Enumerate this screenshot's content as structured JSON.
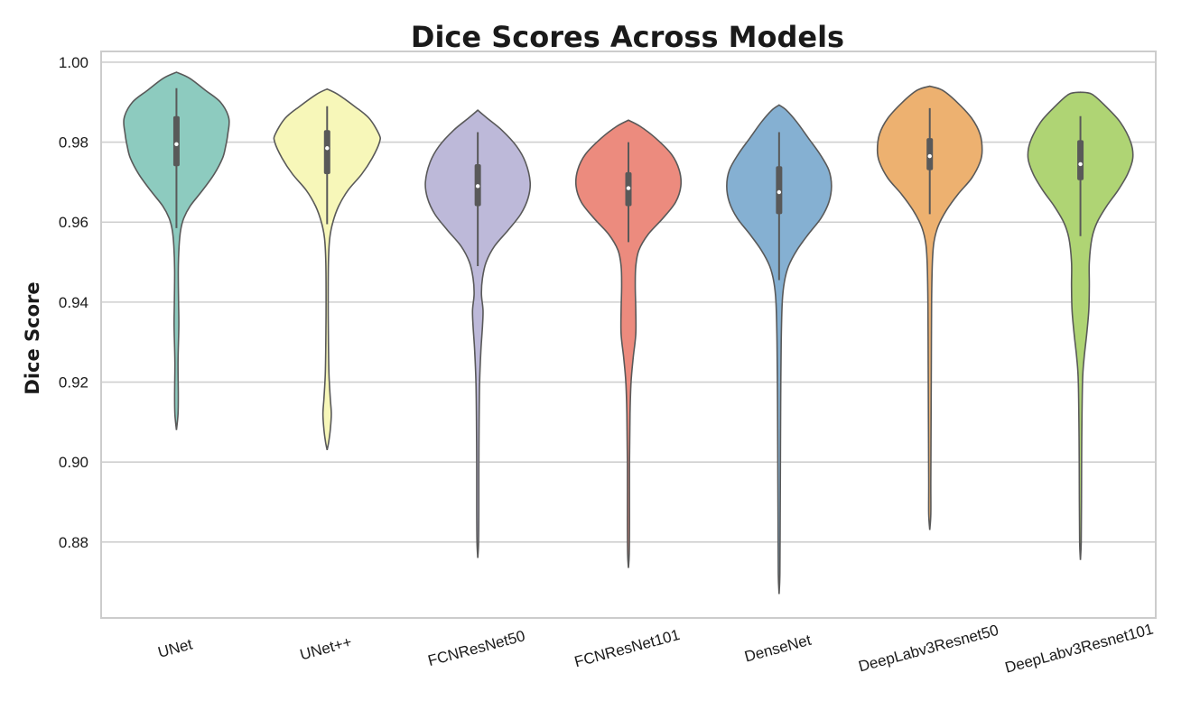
{
  "chart_data": {
    "type": "violin",
    "title": "Dice Scores Across Models",
    "xlabel": "",
    "ylabel": "Dice Score",
    "ylim": [
      0.861,
      1.0027
    ],
    "yticks": [
      "0.88",
      "0.90",
      "0.92",
      "0.94",
      "0.96",
      "0.98",
      "1.00"
    ],
    "grid": true,
    "categories": [
      "UNet",
      "UNet++",
      "FCNResNet50",
      "FCNResNet101",
      "DenseNet",
      "DeepLabv3Resnet50",
      "DeepLabv3Resnet101"
    ],
    "colors": [
      "#8dcbbf",
      "#f7f7b9",
      "#bdb9d9",
      "#ec8b7e",
      "#85b0d2",
      "#edb170",
      "#afd474"
    ],
    "series": [
      {
        "category": "UNet",
        "min": 0.908,
        "max": 0.9975,
        "q1": 0.974,
        "median": 0.9795,
        "q3": 0.9865,
        "whisker_low": 0.9585,
        "whisker_high": 0.9935,
        "density": [
          [
            0.9975,
            0.0
          ],
          [
            0.996,
            0.25
          ],
          [
            0.993,
            0.55
          ],
          [
            0.99,
            0.84
          ],
          [
            0.986,
            1.0
          ],
          [
            0.982,
            0.98
          ],
          [
            0.979,
            0.94
          ],
          [
            0.976,
            0.88
          ],
          [
            0.972,
            0.72
          ],
          [
            0.968,
            0.5
          ],
          [
            0.964,
            0.26
          ],
          [
            0.961,
            0.14
          ],
          [
            0.958,
            0.08
          ],
          [
            0.954,
            0.05
          ],
          [
            0.948,
            0.035
          ],
          [
            0.94,
            0.04
          ],
          [
            0.934,
            0.045
          ],
          [
            0.925,
            0.03
          ],
          [
            0.917,
            0.035
          ],
          [
            0.912,
            0.03
          ],
          [
            0.908,
            0.0
          ]
        ]
      },
      {
        "category": "UNet++",
        "min": 0.903,
        "max": 0.9933,
        "q1": 0.972,
        "median": 0.9785,
        "q3": 0.983,
        "whisker_low": 0.9595,
        "whisker_high": 0.989,
        "density": [
          [
            0.9933,
            0.0
          ],
          [
            0.992,
            0.2
          ],
          [
            0.989,
            0.52
          ],
          [
            0.986,
            0.8
          ],
          [
            0.982,
            0.99
          ],
          [
            0.98,
            1.0
          ],
          [
            0.976,
            0.86
          ],
          [
            0.972,
            0.66
          ],
          [
            0.968,
            0.4
          ],
          [
            0.964,
            0.22
          ],
          [
            0.96,
            0.11
          ],
          [
            0.956,
            0.05
          ],
          [
            0.95,
            0.025
          ],
          [
            0.94,
            0.02
          ],
          [
            0.93,
            0.025
          ],
          [
            0.922,
            0.035
          ],
          [
            0.916,
            0.06
          ],
          [
            0.912,
            0.08
          ],
          [
            0.908,
            0.06
          ],
          [
            0.905,
            0.03
          ],
          [
            0.903,
            0.0
          ]
        ]
      },
      {
        "category": "FCNResNet50",
        "min": 0.876,
        "max": 0.988,
        "q1": 0.964,
        "median": 0.969,
        "q3": 0.9745,
        "whisker_low": 0.949,
        "whisker_high": 0.9825,
        "density": [
          [
            0.988,
            0.0
          ],
          [
            0.986,
            0.18
          ],
          [
            0.983,
            0.46
          ],
          [
            0.979,
            0.74
          ],
          [
            0.975,
            0.91
          ],
          [
            0.97,
            1.0
          ],
          [
            0.966,
            0.96
          ],
          [
            0.962,
            0.82
          ],
          [
            0.958,
            0.58
          ],
          [
            0.954,
            0.32
          ],
          [
            0.95,
            0.16
          ],
          [
            0.946,
            0.09
          ],
          [
            0.942,
            0.07
          ],
          [
            0.938,
            0.1
          ],
          [
            0.934,
            0.09
          ],
          [
            0.928,
            0.06
          ],
          [
            0.92,
            0.035
          ],
          [
            0.91,
            0.025
          ],
          [
            0.898,
            0.02
          ],
          [
            0.888,
            0.02
          ],
          [
            0.88,
            0.015
          ],
          [
            0.876,
            0.0
          ]
        ]
      },
      {
        "category": "FCNResNet101",
        "min": 0.8735,
        "max": 0.9855,
        "q1": 0.964,
        "median": 0.9685,
        "q3": 0.9725,
        "whisker_low": 0.955,
        "whisker_high": 0.98,
        "density": [
          [
            0.9855,
            0.0
          ],
          [
            0.984,
            0.22
          ],
          [
            0.981,
            0.52
          ],
          [
            0.977,
            0.82
          ],
          [
            0.973,
            0.97
          ],
          [
            0.969,
            1.0
          ],
          [
            0.965,
            0.9
          ],
          [
            0.961,
            0.66
          ],
          [
            0.957,
            0.38
          ],
          [
            0.953,
            0.2
          ],
          [
            0.949,
            0.14
          ],
          [
            0.944,
            0.13
          ],
          [
            0.938,
            0.14
          ],
          [
            0.932,
            0.14
          ],
          [
            0.926,
            0.09
          ],
          [
            0.92,
            0.05
          ],
          [
            0.912,
            0.03
          ],
          [
            0.9,
            0.02
          ],
          [
            0.885,
            0.02
          ],
          [
            0.877,
            0.015
          ],
          [
            0.8735,
            0.0
          ]
        ]
      },
      {
        "category": "DenseNet",
        "min": 0.867,
        "max": 0.9893,
        "q1": 0.962,
        "median": 0.9675,
        "q3": 0.974,
        "whisker_low": 0.9455,
        "whisker_high": 0.9825,
        "density": [
          [
            0.9893,
            0.0
          ],
          [
            0.988,
            0.14
          ],
          [
            0.985,
            0.34
          ],
          [
            0.981,
            0.56
          ],
          [
            0.977,
            0.78
          ],
          [
            0.973,
            0.95
          ],
          [
            0.969,
            1.0
          ],
          [
            0.965,
            0.95
          ],
          [
            0.961,
            0.8
          ],
          [
            0.957,
            0.56
          ],
          [
            0.953,
            0.34
          ],
          [
            0.949,
            0.18
          ],
          [
            0.945,
            0.1
          ],
          [
            0.94,
            0.06
          ],
          [
            0.93,
            0.04
          ],
          [
            0.915,
            0.03
          ],
          [
            0.9,
            0.025
          ],
          [
            0.885,
            0.02
          ],
          [
            0.872,
            0.015
          ],
          [
            0.867,
            0.0
          ]
        ]
      },
      {
        "category": "DeepLabv3Resnet50",
        "min": 0.883,
        "max": 0.994,
        "q1": 0.973,
        "median": 0.9765,
        "q3": 0.981,
        "whisker_low": 0.962,
        "whisker_high": 0.9885,
        "density": [
          [
            0.994,
            0.0
          ],
          [
            0.993,
            0.24
          ],
          [
            0.99,
            0.52
          ],
          [
            0.986,
            0.8
          ],
          [
            0.982,
            0.96
          ],
          [
            0.978,
            1.0
          ],
          [
            0.975,
            0.96
          ],
          [
            0.971,
            0.8
          ],
          [
            0.967,
            0.54
          ],
          [
            0.963,
            0.32
          ],
          [
            0.959,
            0.16
          ],
          [
            0.955,
            0.08
          ],
          [
            0.95,
            0.05
          ],
          [
            0.94,
            0.035
          ],
          [
            0.925,
            0.03
          ],
          [
            0.91,
            0.025
          ],
          [
            0.895,
            0.02
          ],
          [
            0.887,
            0.02
          ],
          [
            0.883,
            0.0
          ]
        ]
      },
      {
        "category": "DeepLabv3Resnet101",
        "min": 0.8755,
        "max": 0.9925,
        "q1": 0.9705,
        "median": 0.9745,
        "q3": 0.9805,
        "whisker_low": 0.9565,
        "whisker_high": 0.9865,
        "density": [
          [
            0.9925,
            0.0
          ],
          [
            0.992,
            0.22
          ],
          [
            0.989,
            0.48
          ],
          [
            0.985,
            0.76
          ],
          [
            0.98,
            0.96
          ],
          [
            0.976,
            1.0
          ],
          [
            0.972,
            0.9
          ],
          [
            0.968,
            0.72
          ],
          [
            0.964,
            0.5
          ],
          [
            0.96,
            0.32
          ],
          [
            0.956,
            0.22
          ],
          [
            0.95,
            0.17
          ],
          [
            0.944,
            0.17
          ],
          [
            0.938,
            0.16
          ],
          [
            0.932,
            0.12
          ],
          [
            0.926,
            0.07
          ],
          [
            0.92,
            0.04
          ],
          [
            0.905,
            0.025
          ],
          [
            0.89,
            0.02
          ],
          [
            0.88,
            0.015
          ],
          [
            0.8755,
            0.0
          ]
        ]
      }
    ]
  }
}
